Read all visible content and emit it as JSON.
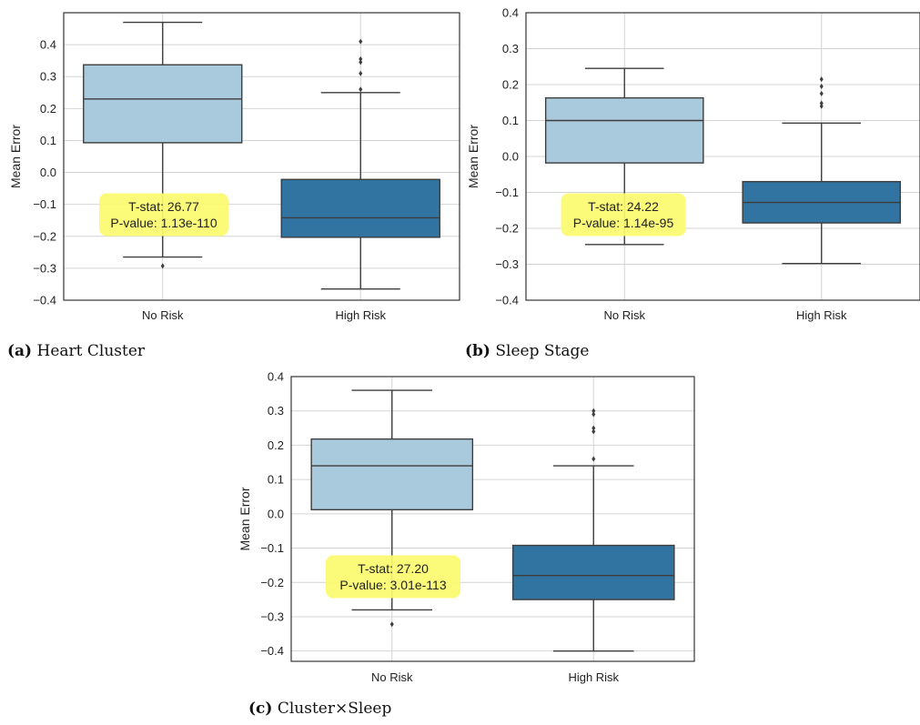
{
  "chart_data": [
    {
      "type": "box",
      "ylabel": "Mean Error",
      "ylim": [
        -0.4,
        0.5
      ],
      "yticks": [
        "0.4",
        "0.3",
        "0.2",
        "0.1",
        "0.0",
        "−0.1",
        "−0.2",
        "−0.3",
        "−0.4"
      ],
      "categories": [
        "No Risk",
        "High Risk"
      ],
      "boxes": [
        {
          "whisker_low": -0.265,
          "q1": 0.093,
          "median": 0.23,
          "q3": 0.337,
          "whisker_high": 0.47,
          "outliers": [
            -0.293
          ],
          "color": "#a9cadc"
        },
        {
          "whisker_low": -0.365,
          "q1": -0.203,
          "median": -0.142,
          "q3": -0.022,
          "whisker_high": 0.25,
          "outliers": [
            0.26,
            0.31,
            0.345,
            0.355,
            0.41
          ],
          "color": "#3274a1"
        }
      ],
      "annotation": {
        "line1": "T-stat: 26.77",
        "line2": "P-value: 1.13e-110"
      },
      "caption_letter": "(a)",
      "caption_text": "Heart Cluster"
    },
    {
      "type": "box",
      "ylabel": "Mean Error",
      "ylim": [
        -0.4,
        0.4
      ],
      "yticks": [
        "0.4",
        "0.3",
        "0.2",
        "0.1",
        "0.0",
        "−0.1",
        "−0.2",
        "−0.3",
        "−0.4"
      ],
      "categories": [
        "No Risk",
        "High Risk"
      ],
      "boxes": [
        {
          "whisker_low": -0.245,
          "q1": -0.018,
          "median": 0.1,
          "q3": 0.163,
          "whisker_high": 0.245,
          "outliers": [],
          "color": "#a9cadc"
        },
        {
          "whisker_low": -0.298,
          "q1": -0.185,
          "median": -0.128,
          "q3": -0.07,
          "whisker_high": 0.093,
          "outliers": [
            0.14,
            0.148,
            0.175,
            0.195,
            0.215
          ],
          "color": "#3274a1"
        }
      ],
      "annotation": {
        "line1": "T-stat: 24.22",
        "line2": "P-value: 1.14e-95"
      },
      "caption_letter": "(b)",
      "caption_text": "Sleep Stage"
    },
    {
      "type": "box",
      "ylabel": "Mean Error",
      "ylim": [
        -0.43,
        0.4
      ],
      "yticks": [
        "0.4",
        "0.3",
        "0.2",
        "0.1",
        "0.0",
        "−0.1",
        "−0.2",
        "−0.3",
        "−0.4"
      ],
      "categories": [
        "No Risk",
        "High Risk"
      ],
      "boxes": [
        {
          "whisker_low": -0.28,
          "q1": 0.012,
          "median": 0.14,
          "q3": 0.218,
          "whisker_high": 0.36,
          "outliers": [
            -0.322
          ],
          "color": "#a9cadc"
        },
        {
          "whisker_low": -0.4,
          "q1": -0.25,
          "median": -0.18,
          "q3": -0.092,
          "whisker_high": 0.14,
          "outliers": [
            0.16,
            0.24,
            0.25,
            0.29,
            0.3
          ],
          "color": "#3274a1"
        }
      ],
      "annotation": {
        "line1": "T-stat: 27.20",
        "line2": "P-value: 3.01e-113"
      },
      "caption_letter": "(c)",
      "caption_text": "Cluster×Sleep"
    }
  ]
}
